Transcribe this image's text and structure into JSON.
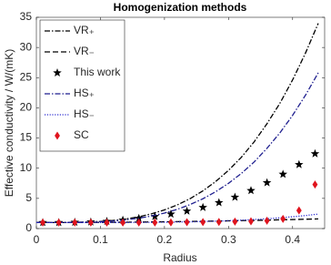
{
  "chart_data": {
    "type": "line",
    "title": "Homogenization methods",
    "x_label": "Radius",
    "y_label": "Effective conductivity / W/(mK)",
    "xlim": [
      0,
      0.45
    ],
    "ylim": [
      0,
      35
    ],
    "xticks": [
      0,
      0.1,
      0.2,
      0.3,
      0.4
    ],
    "yticks": [
      0,
      5,
      10,
      15,
      20,
      25,
      30,
      35
    ],
    "grid": false,
    "legend": "upper left",
    "series": [
      {
        "name": "VR₊",
        "color": "#000000",
        "dash": "dashdot",
        "marker": "none",
        "x": [
          0,
          0.02,
          0.04,
          0.06,
          0.08,
          0.1,
          0.12,
          0.14,
          0.16,
          0.18,
          0.2,
          0.22,
          0.24,
          0.26,
          0.28,
          0.3,
          0.32,
          0.34,
          0.36,
          0.38,
          0.4,
          0.42,
          0.44
        ],
        "values": [
          1,
          1,
          1.01,
          1.03,
          1.09,
          1.18,
          1.35,
          1.6,
          1.96,
          2.45,
          3.1,
          3.92,
          4.96,
          6.25,
          7.8,
          9.65,
          11.82,
          14.37,
          17.37,
          20.73,
          24.63,
          29.05,
          34
        ]
      },
      {
        "name": "VR₋",
        "color": "#000000",
        "dash": "dashed",
        "marker": "none",
        "x": [
          0,
          0.02,
          0.04,
          0.06,
          0.08,
          0.1,
          0.12,
          0.14,
          0.16,
          0.18,
          0.2,
          0.22,
          0.24,
          0.26,
          0.28,
          0.3,
          0.32,
          0.34,
          0.36,
          0.38,
          0.4,
          0.42,
          0.44
        ],
        "values": [
          1,
          1,
          1,
          1.01,
          1.02,
          1.03,
          1.04,
          1.06,
          1.08,
          1.1,
          1.12,
          1.15,
          1.18,
          1.21,
          1.24,
          1.28,
          1.32,
          1.36,
          1.4,
          1.45,
          1.5,
          1.55,
          1.6
        ]
      },
      {
        "name": "This work",
        "color": "#000000",
        "dash": "none",
        "marker": "star",
        "x": [
          0.01,
          0.035,
          0.06,
          0.085,
          0.11,
          0.135,
          0.16,
          0.185,
          0.21,
          0.235,
          0.26,
          0.285,
          0.31,
          0.335,
          0.36,
          0.385,
          0.41,
          0.435
        ],
        "values": [
          1,
          1,
          1.05,
          1.1,
          1.2,
          1.4,
          1.7,
          2,
          2.4,
          2.9,
          3.5,
          4.3,
          5.2,
          6.3,
          7.6,
          9,
          10.6,
          12.4
        ]
      },
      {
        "name": "HS₊",
        "color": "#1f1f8f",
        "dash": "dashdot",
        "marker": "none",
        "x": [
          0,
          0.02,
          0.04,
          0.06,
          0.08,
          0.1,
          0.12,
          0.14,
          0.16,
          0.18,
          0.2,
          0.22,
          0.24,
          0.26,
          0.28,
          0.3,
          0.32,
          0.34,
          0.36,
          0.38,
          0.4,
          0.42,
          0.44
        ],
        "values": [
          1,
          1,
          1.01,
          1.02,
          1.06,
          1.14,
          1.26,
          1.45,
          1.72,
          2.09,
          2.57,
          3.19,
          3.98,
          4.94,
          6.11,
          7.5,
          9.13,
          11.04,
          13.3,
          15.83,
          18.76,
          22.08,
          25.8
        ]
      },
      {
        "name": "HS₋",
        "color": "#2a2ad0",
        "dash": "dotted",
        "marker": "none",
        "x": [
          0,
          0.02,
          0.04,
          0.06,
          0.08,
          0.1,
          0.12,
          0.14,
          0.16,
          0.18,
          0.2,
          0.22,
          0.24,
          0.26,
          0.28,
          0.3,
          0.32,
          0.34,
          0.36,
          0.38,
          0.4,
          0.42,
          0.44
        ],
        "values": [
          1,
          1,
          1,
          1,
          1,
          1,
          1.01,
          1.01,
          1.02,
          1.04,
          1.06,
          1.09,
          1.12,
          1.17,
          1.23,
          1.3,
          1.39,
          1.5,
          1.63,
          1.78,
          1.96,
          2.16,
          2.4
        ]
      },
      {
        "name": "SC",
        "color": "#e0141e",
        "dash": "none",
        "marker": "diamond",
        "x": [
          0.01,
          0.035,
          0.06,
          0.085,
          0.11,
          0.135,
          0.16,
          0.185,
          0.21,
          0.235,
          0.26,
          0.285,
          0.31,
          0.335,
          0.36,
          0.385,
          0.41,
          0.435
        ],
        "values": [
          1,
          1,
          1,
          1,
          1,
          1,
          1,
          1,
          1.02,
          1.05,
          1.08,
          1.1,
          1.15,
          1.2,
          1.3,
          1.6,
          3,
          7.3
        ]
      }
    ]
  }
}
